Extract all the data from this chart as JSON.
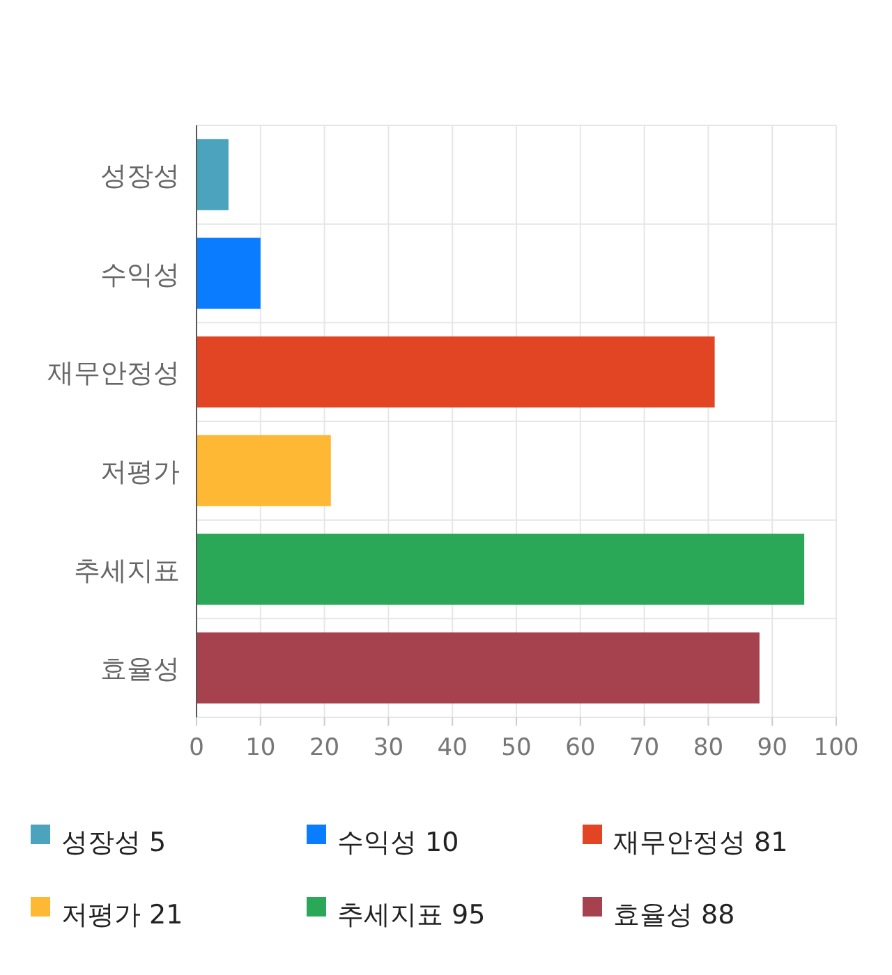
{
  "chart_data": {
    "type": "bar",
    "orientation": "horizontal",
    "categories": [
      "성장성",
      "수익성",
      "재무안정성",
      "저평가",
      "추세지표",
      "효율성"
    ],
    "series": [
      {
        "name": "성장성 5",
        "color": "#4ba3bd",
        "values": [
          5,
          null,
          null,
          null,
          null,
          null
        ]
      },
      {
        "name": "수익성 10",
        "color": "#0a7cff",
        "values": [
          null,
          10,
          null,
          null,
          null,
          null
        ]
      },
      {
        "name": "재무안정성 81",
        "color": "#e24523",
        "values": [
          null,
          null,
          81,
          null,
          null,
          null
        ]
      },
      {
        "name": "저평가 21",
        "color": "#ffb833",
        "values": [
          null,
          null,
          null,
          21,
          null,
          null
        ]
      },
      {
        "name": "추세지표 95",
        "color": "#2aa757",
        "values": [
          null,
          null,
          null,
          null,
          95,
          null
        ]
      },
      {
        "name": "효율성 88",
        "color": "#a6414e",
        "values": [
          null,
          null,
          null,
          null,
          null,
          88
        ]
      }
    ],
    "xlim": [
      0,
      100
    ],
    "xticks": [
      0,
      10,
      20,
      30,
      40,
      50,
      60,
      70,
      80,
      90,
      100
    ],
    "grid": true,
    "legend": "bottom"
  }
}
